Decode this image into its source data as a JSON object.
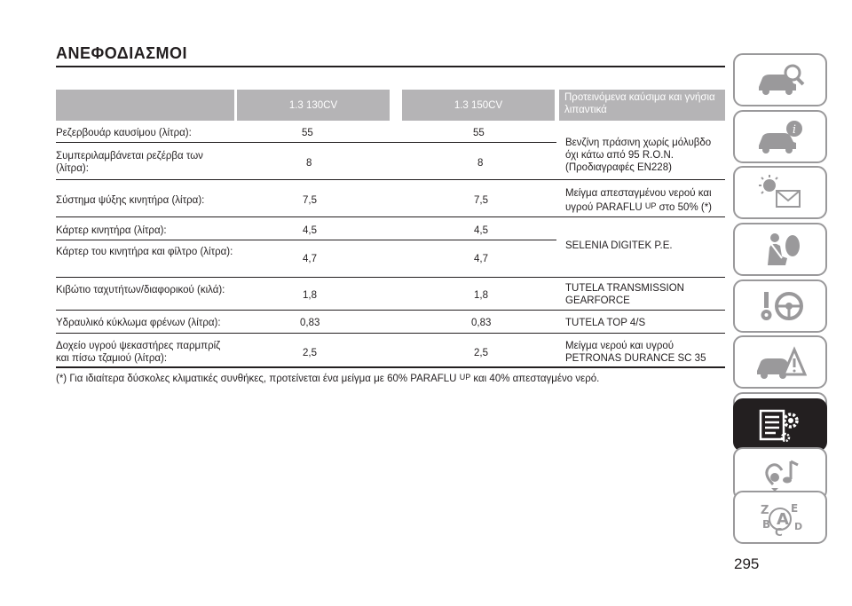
{
  "title": "ΑΝΕΦΟΔΙΑΣΜΟΙ",
  "table": {
    "headers": [
      "",
      "1.3 130CV",
      "1.3 150CV",
      "Προτεινόμενα καύσιμα και γνήσια λιπαντικά"
    ],
    "rows": [
      {
        "label": "Ρεζερβουάρ καυσίμου (λίτρα):",
        "v1": "55",
        "v2": "55"
      },
      {
        "label": "Συμπεριλαμβάνεται ρεζέρβα των (λίτρα):",
        "v1": "8",
        "v2": "8"
      },
      {
        "label": "Σύστημα ψύξης κινητήρα (λίτρα):",
        "v1": "7,5",
        "v2": "7,5"
      },
      {
        "label": "Κάρτερ κινητήρα (λίτρα):",
        "v1": "4,5",
        "v2": "4,5"
      },
      {
        "label": "Κάρτερ του κινητήρα και φίλτρο (λίτρα):",
        "v1": "4,7",
        "v2": "4,7"
      },
      {
        "label": "Κιβώτιο ταχυτήτων/διαφορικού (κιλά):",
        "v1": "1,8",
        "v2": "1,8"
      },
      {
        "label": "Υδραυλικό κύκλωμα φρένων (λίτρα):",
        "v1": "0,83",
        "v2": "0,83"
      },
      {
        "label": "Δοχείο υγρού ψεκαστήρες παρμπρίζ και πίσω τζαμιού (λίτρα):",
        "v1": "2,5",
        "v2": "2,5"
      }
    ],
    "recommendations": {
      "fuel": "Βενζίνη πράσινη χωρίς μόλυβδο όχι κάτω από 95 R.O.N. (Προδιαγραφές EN228)",
      "coolant_pre": "Μείγμα απεσταγμένου νερού και υγρού PARAFLU",
      "coolant_sup": "UP",
      "coolant_post": "στο 50% (*)",
      "engine_oil": "SELENIA DIGITEK P.E.",
      "gearbox": "TUTELA TRANSMISSION GEARFORCE",
      "brake": "TUTELA TOP 4/S",
      "washer": "Μείγμα νερού και υγρού PETRONAS DURANCE SC 35"
    }
  },
  "footnote": {
    "pre": "(*) Για ιδιαίτερα δύσκολες κλιματικές συνθήκες, προτείνεται ένα μείγμα με 60% PARAFLU",
    "sup": "UP",
    "post": "και 40% απεσταγμένο νερό."
  },
  "page_number": "295",
  "side_tabs": [
    {
      "icon": "car-search-icon",
      "active": false
    },
    {
      "icon": "car-info-icon",
      "active": false
    },
    {
      "icon": "warning-light-envelope-icon",
      "active": false
    },
    {
      "icon": "seat-belt-airbag-icon",
      "active": false
    },
    {
      "icon": "key-steering-wheel-icon",
      "active": false
    },
    {
      "icon": "car-warning-triangle-icon",
      "active": false
    },
    {
      "icon": "car-wrench-icon",
      "active": false
    },
    {
      "icon": "specs-gear-icon",
      "active": true
    },
    {
      "icon": "multimedia-icon",
      "active": false
    },
    {
      "icon": "alphabetical-index-icon",
      "active": false
    }
  ],
  "colors": {
    "header_bg": "#b5b4b6",
    "text": "#231f20",
    "tab_border": "#9a999b"
  }
}
